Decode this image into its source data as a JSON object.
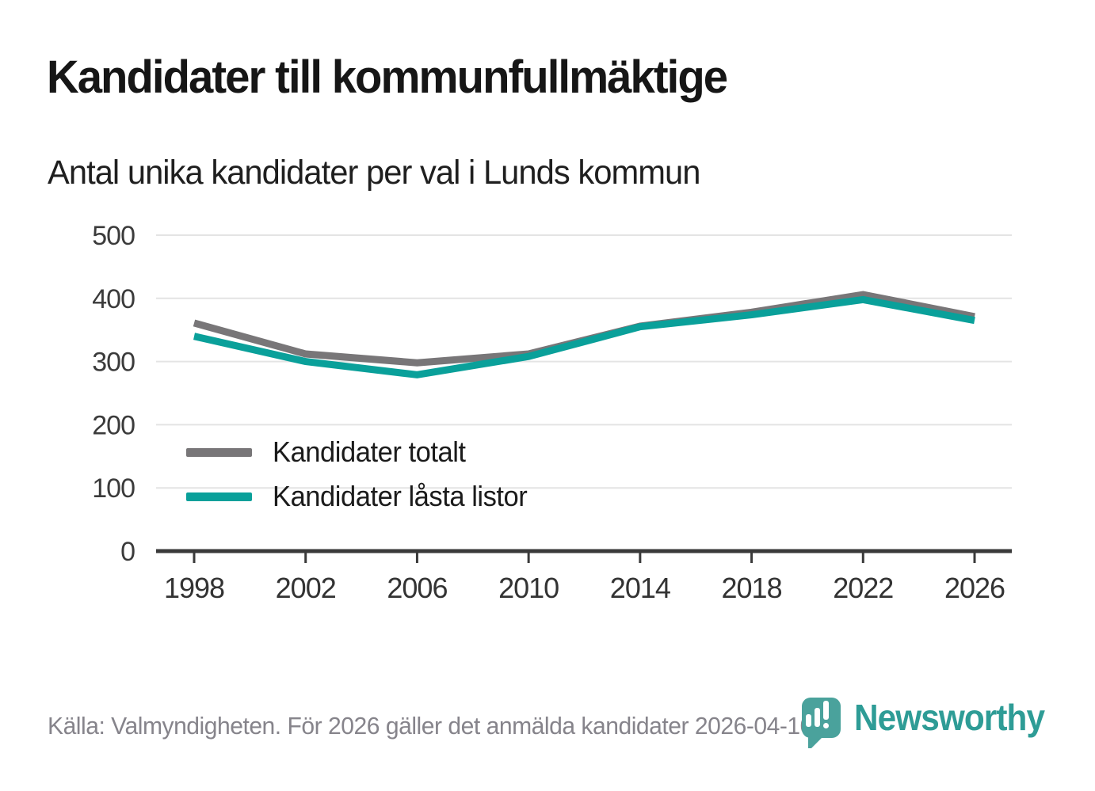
{
  "header": {
    "title": "Kandidater till kommunfullmäktige",
    "subtitle": "Antal unika kandidater per val i Lunds kommun"
  },
  "chart_data": {
    "type": "line",
    "title": "Kandidater till kommunfullmäktige",
    "subtitle": "Antal unika kandidater per val i Lunds kommun",
    "categories": [
      "1998",
      "2002",
      "2006",
      "2010",
      "2014",
      "2018",
      "2022",
      "2026"
    ],
    "series": [
      {
        "name": "Kandidater totalt",
        "color": "#787678",
        "values": [
          361,
          312,
          298,
          312,
          356,
          378,
          406,
          371
        ]
      },
      {
        "name": "Kandidater låsta listor",
        "color": "#0aa09a",
        "values": [
          340,
          300,
          279,
          308,
          355,
          374,
          398,
          365
        ]
      }
    ],
    "xlabel": "",
    "ylabel": "",
    "ylim": [
      0,
      500
    ],
    "yticks": [
      0,
      100,
      200,
      300,
      400,
      500
    ],
    "grid": true,
    "legend_position": "inside-bottom-left",
    "gridline_color": "#e4e4e4",
    "axis_color": "#3a3a3a",
    "tick_label_color": "#333333"
  },
  "footer": {
    "source": "Källa: Valmyndigheten. För 2026 gäller det anmälda kandidater 2026-04-10.",
    "logo_text": "Newsworthy"
  }
}
